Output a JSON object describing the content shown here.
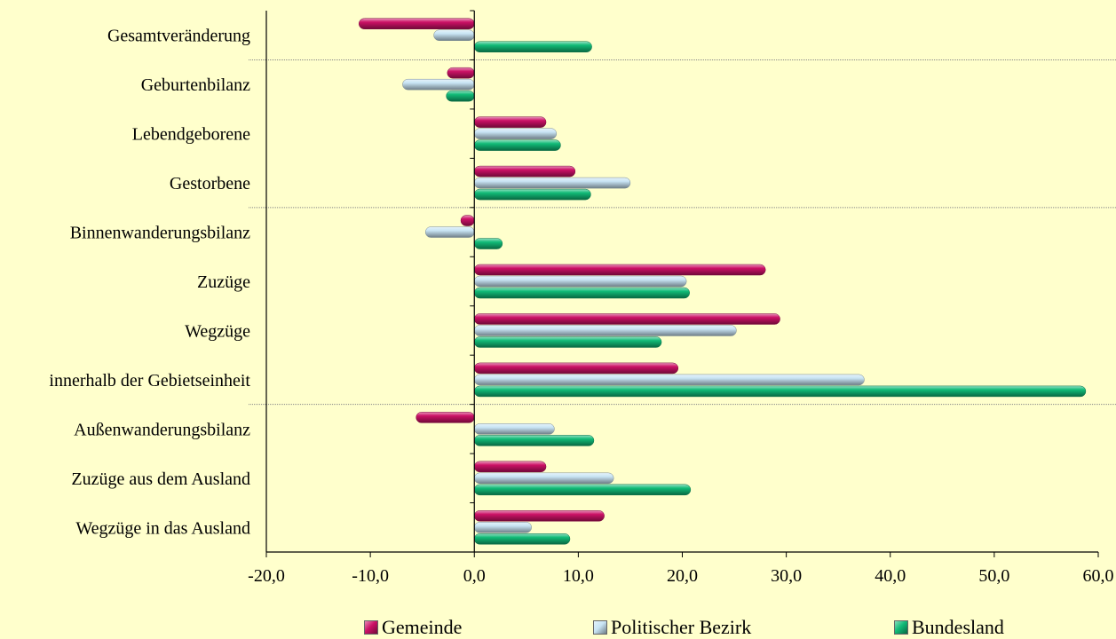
{
  "chart_data": {
    "type": "bar",
    "orientation": "horizontal",
    "categories": [
      "Gesamtveränderung",
      "Geburtenbilanz",
      "Lebendgeborene",
      "Gestorbene",
      "Binnenwanderungsbilanz",
      "Zuzüge",
      "Wegzüge",
      "innerhalb der Gebietseinheit",
      "Außenwanderungsbilanz",
      "Zuzüge aus dem Ausland",
      "Wegzüge in das Ausland"
    ],
    "series": [
      {
        "name": "Gemeinde",
        "color": "#cc1166",
        "values": [
          -11.1,
          -2.6,
          6.9,
          9.7,
          -1.3,
          28.0,
          29.4,
          19.6,
          -5.6,
          6.9,
          12.5
        ]
      },
      {
        "name": "Politischer Bezirk",
        "color": "#c8e4f4",
        "values": [
          -3.9,
          -6.9,
          7.9,
          15.0,
          -4.7,
          20.4,
          25.2,
          37.5,
          7.7,
          13.4,
          5.5
        ]
      },
      {
        "name": "Bundesland",
        "color": "#11bb77",
        "values": [
          11.3,
          -2.7,
          8.3,
          11.2,
          2.7,
          20.7,
          18.0,
          58.8,
          11.5,
          20.8,
          9.2
        ]
      }
    ],
    "xlim": [
      -20,
      60
    ],
    "xticks": [
      "-20,0",
      "-10,0",
      "0,0",
      "10,0",
      "20,0",
      "30,0",
      "40,0",
      "50,0",
      "60,0"
    ],
    "xlabel": "",
    "ylabel": "",
    "title": "",
    "group_separators_after": [
      "Gesamtveränderung",
      "Gestorbene",
      "innerhalb der Gebietseinheit"
    ],
    "legend_position": "bottom",
    "grid": false
  }
}
